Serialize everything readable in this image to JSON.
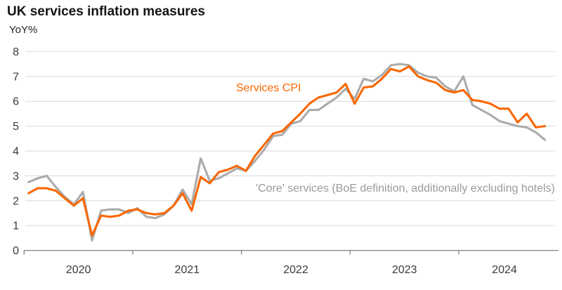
{
  "header": {
    "title": "UK services inflation measures",
    "unit_label": "YoY%"
  },
  "chart_data": {
    "type": "line",
    "title": "UK services inflation measures",
    "ylabel": "YoY%",
    "xlabel": "",
    "ylim": [
      0,
      8
    ],
    "y_ticks": [
      0,
      1,
      2,
      3,
      4,
      5,
      6,
      7,
      8
    ],
    "x_tick_years": [
      "2020",
      "2021",
      "2022",
      "2023",
      "2024"
    ],
    "frequency": "monthly",
    "x_start": "2020-01",
    "x_end": "2024-10",
    "grid": "horizontal-light-gray",
    "legend_position": "inline-annotations",
    "series": [
      {
        "name": "'Core' services (BoE definition, additionally excluding hotels)",
        "color": "#ABABAB",
        "label_color": "#9A9A9A",
        "values": [
          2.75,
          2.9,
          3.0,
          2.55,
          2.15,
          1.85,
          2.35,
          0.4,
          1.6,
          1.65,
          1.65,
          1.5,
          1.7,
          1.35,
          1.3,
          1.45,
          1.8,
          2.45,
          1.85,
          3.7,
          2.8,
          2.9,
          3.1,
          3.3,
          3.2,
          3.6,
          4.05,
          4.6,
          4.65,
          5.1,
          5.2,
          5.65,
          5.65,
          5.9,
          6.15,
          6.5,
          6.1,
          6.9,
          6.8,
          7.05,
          7.45,
          7.5,
          7.45,
          7.15,
          7.0,
          6.95,
          6.6,
          6.4,
          7.0,
          5.85,
          5.65,
          5.45,
          5.2,
          5.1,
          5.0,
          4.95,
          4.75,
          4.45
        ]
      },
      {
        "name": "Services CPI",
        "color": "#F96702",
        "label_color": "#F96702",
        "values": [
          2.3,
          2.5,
          2.5,
          2.4,
          2.1,
          1.8,
          2.1,
          0.6,
          1.4,
          1.35,
          1.4,
          1.6,
          1.65,
          1.5,
          1.45,
          1.5,
          1.8,
          2.3,
          1.6,
          2.95,
          2.7,
          3.15,
          3.25,
          3.4,
          3.2,
          3.8,
          4.25,
          4.7,
          4.8,
          5.15,
          5.5,
          5.9,
          6.15,
          6.25,
          6.35,
          6.7,
          5.9,
          6.55,
          6.6,
          6.9,
          7.3,
          7.2,
          7.4,
          7.0,
          6.85,
          6.75,
          6.45,
          6.35,
          6.45,
          6.05,
          6.0,
          5.9,
          5.7,
          5.7,
          5.15,
          5.5,
          4.95,
          5.0
        ]
      }
    ],
    "annotations": [
      {
        "text": "Services CPI",
        "color": "#F96702"
      },
      {
        "text": "'Core' services (BoE definition, additionally excluding hotels)",
        "color": "#9A9A9A"
      }
    ]
  },
  "colors": {
    "background": "#FFFFFF",
    "gridline": "#D9D9D9",
    "axis": "#808080",
    "tick_text": "#3A3A3A",
    "title_text": "#141414"
  }
}
